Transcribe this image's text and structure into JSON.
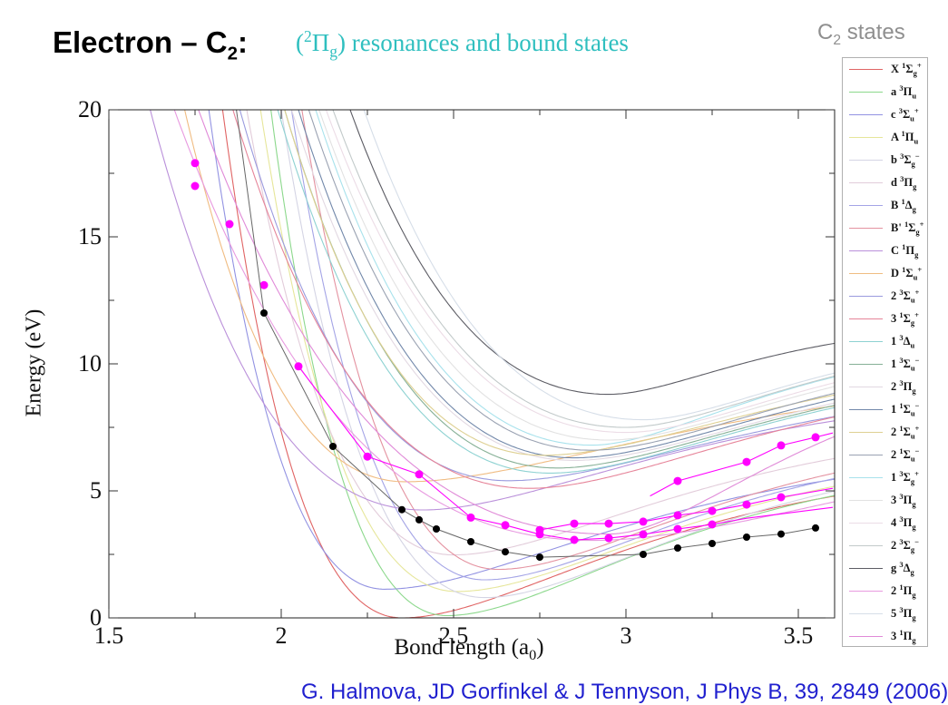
{
  "slide": {
    "title": {
      "prefix": "Electron – C",
      "sub": "2",
      "suffix": ":"
    },
    "subtitle": {
      "open": "(",
      "sup": "2",
      "symbol": "Π",
      "sub": "g",
      "rest": ") resonances and bound states",
      "color": "#2fbfbf"
    },
    "legend_title": {
      "prefix": "C",
      "sub": "2",
      "suffix": " states"
    },
    "citation": "G. Halmova,  JD Gorfinkel &  J Tennyson, J Phys B, 39, 2849 (2006)",
    "colors": {
      "citation": "#2020cf",
      "frame": "#222222",
      "tick": "#333333",
      "legend_border": "#b0b0b0",
      "header_gray": "#8f8f8f"
    }
  },
  "axes": {
    "x": {
      "label_prefix": "Bond length (a",
      "label_sub": "0",
      "label_suffix": ")",
      "min": 1.5,
      "max": 3.605,
      "major": [
        1.5,
        2,
        2.5,
        3,
        3.5
      ],
      "minor": [
        1.75,
        2.25,
        2.75,
        3.25
      ],
      "tick_labels": [
        "1.5",
        "2",
        "2.5",
        "3",
        "3.5"
      ]
    },
    "y": {
      "label": "Energy (eV)",
      "min": 0,
      "max": 20,
      "major": [
        0,
        5,
        10,
        15,
        20
      ],
      "minor": [
        2.5,
        7.5,
        12.5,
        17.5
      ],
      "tick_labels": [
        "0",
        "5",
        "10",
        "15",
        "20"
      ]
    }
  },
  "chart_data": {
    "type": "line",
    "title": "Electron – C2: (2Πg) resonances and bound states",
    "xlabel": "Bond length (a0)",
    "ylabel": "Energy (eV)",
    "xlim": [
      1.5,
      3.605
    ],
    "ylim": [
      0,
      20
    ],
    "grid": false,
    "legend_position": "right-outside",
    "curve_model": "morse: E(R)=te+dl*(1-exp(-al*(R-re)))^2 left of re (al set so E(r20)=20), E(R)=te+(asym-te)*(1-exp(-ar*(R-re)))^2 right of re",
    "curves": [
      {
        "prefix": "X",
        "mult": "1",
        "sym": "Σ",
        "sub": "g",
        "sup": "+",
        "color": "#e06464",
        "te": 0,
        "re": 2.35,
        "r20": 1.83,
        "asym": 6.4,
        "ar": 1.6
      },
      {
        "prefix": "a",
        "mult": "3",
        "sym": "Π",
        "sub": "u",
        "sup": "",
        "color": "#8cd88c",
        "te": 0.09,
        "re": 2.48,
        "r20": 1.97,
        "asym": 6.6,
        "ar": 1.7
      },
      {
        "prefix": "c",
        "mult": "3",
        "sym": "Σ",
        "sub": "u",
        "sup": "+",
        "color": "#9292e2",
        "te": 1.13,
        "re": 2.3,
        "r20": 1.79,
        "asym": 7.0,
        "ar": 1.5
      },
      {
        "prefix": "A",
        "mult": "1",
        "sym": "Π",
        "sub": "u",
        "sup": "",
        "color": "#e6e69a",
        "te": 1.04,
        "re": 2.51,
        "r20": 1.94,
        "asym": 7.1,
        "ar": 1.6
      },
      {
        "prefix": "b",
        "mult": "3",
        "sym": "Σ",
        "sub": "g",
        "sup": "−",
        "color": "#d4d4e4",
        "te": 0.8,
        "re": 2.59,
        "r20": 2.0,
        "asym": 7.0,
        "ar": 1.7
      },
      {
        "prefix": "d",
        "mult": "3",
        "sym": "Π",
        "sub": "g",
        "sup": "",
        "color": "#e2ccda",
        "te": 2.48,
        "re": 2.5,
        "r20": 1.9,
        "asym": 8.0,
        "ar": 1.6
      },
      {
        "prefix": "B",
        "mult": "1",
        "sym": "Δ",
        "sub": "g",
        "sup": "",
        "color": "#a4a4e6",
        "te": 1.5,
        "re": 2.59,
        "r20": 2.03,
        "asym": 7.4,
        "ar": 1.7
      },
      {
        "prefix": "B'",
        "mult": "1",
        "sym": "Σ",
        "sub": "g",
        "sup": "+",
        "color": "#e492a0",
        "te": 1.91,
        "re": 2.63,
        "r20": 2.06,
        "asym": 7.7,
        "ar": 1.7
      },
      {
        "prefix": "C",
        "mult": "1",
        "sym": "Π",
        "sub": "g",
        "sup": "",
        "color": "#ba90da",
        "te": 4.25,
        "re": 2.41,
        "r20": 1.62,
        "asym": 9.3,
        "ar": 1.5
      },
      {
        "prefix": "D",
        "mult": "1",
        "sym": "Σ",
        "sub": "u",
        "sup": "+",
        "color": "#f0bc82",
        "te": 5.36,
        "re": 2.36,
        "r20": 1.72,
        "asym": 10.0,
        "ar": 1.3
      },
      {
        "prefix": "2",
        "mult": "3",
        "sym": "Σ",
        "sub": "u",
        "sup": "+",
        "color": "#9a9ade",
        "te": 5.4,
        "re": 2.66,
        "r20": 1.88,
        "asym": 9.8,
        "ar": 1.5
      },
      {
        "prefix": "3",
        "mult": "1",
        "sym": "Σ",
        "sub": "g",
        "sup": "+",
        "color": "#e68499",
        "te": 5.1,
        "re": 2.72,
        "r20": 1.86,
        "asym": 10.3,
        "ar": 1.5
      },
      {
        "prefix": "1",
        "mult": "3",
        "sym": "Δ",
        "sub": "u",
        "sup": "",
        "color": "#8ed2d2",
        "te": 5.7,
        "re": 2.78,
        "r20": 1.99,
        "asym": 10.5,
        "ar": 1.6
      },
      {
        "prefix": "1",
        "mult": "3",
        "sym": "Σ",
        "sub": "u",
        "sup": "−",
        "color": "#86b096",
        "te": 5.9,
        "re": 2.8,
        "r20": 2.01,
        "asym": 10.6,
        "ar": 1.6
      },
      {
        "prefix": "2",
        "mult": "3",
        "sym": "Π",
        "sub": "g",
        "sup": "",
        "color": "#e2d8e2",
        "te": 6.2,
        "re": 2.85,
        "r20": 2.03,
        "asym": 10.8,
        "ar": 1.6
      },
      {
        "prefix": "1",
        "mult": "1",
        "sym": "Σ",
        "sub": "u",
        "sup": "−",
        "color": "#7288aa",
        "te": 6.3,
        "re": 2.85,
        "r20": 2.05,
        "asym": 11.0,
        "ar": 1.6
      },
      {
        "prefix": "2",
        "mult": "1",
        "sym": "Σ",
        "sub": "u",
        "sup": "+",
        "color": "#ded092",
        "te": 6.4,
        "re": 2.76,
        "r20": 2.01,
        "asym": 11.0,
        "ar": 1.5
      },
      {
        "prefix": "2",
        "mult": "1",
        "sym": "Σ",
        "sub": "u",
        "sup": "−",
        "color": "#9aa2b2",
        "te": 6.6,
        "re": 2.9,
        "r20": 2.08,
        "asym": 11.2,
        "ar": 1.7
      },
      {
        "prefix": "1",
        "mult": "3",
        "sym": "Σ",
        "sub": "g",
        "sup": "+",
        "color": "#a8e2ec",
        "te": 6.8,
        "re": 2.9,
        "r20": 2.1,
        "asym": 11.3,
        "ar": 2.1
      },
      {
        "prefix": "3",
        "mult": "3",
        "sym": "Π",
        "sub": "g",
        "sup": "",
        "color": "#e2e2e2",
        "te": 7.0,
        "re": 2.95,
        "r20": 2.11,
        "asym": 11.4,
        "ar": 1.8
      },
      {
        "prefix": "4",
        "mult": "3",
        "sym": "Π",
        "sub": "g",
        "sup": "",
        "color": "#ecdce6",
        "te": 7.3,
        "re": 3.0,
        "r20": 2.13,
        "asym": 11.5,
        "ar": 1.9
      },
      {
        "prefix": "2",
        "mult": "3",
        "sym": "Σ",
        "sub": "g",
        "sup": "−",
        "color": "#c2caca",
        "te": 7.5,
        "re": 3.0,
        "r20": 2.15,
        "asym": 11.6,
        "ar": 2.0
      },
      {
        "prefix": "g",
        "mult": "3",
        "sym": "Δ",
        "sub": "g",
        "sup": "",
        "color": "#5c5c64",
        "te": 8.8,
        "re": 2.95,
        "r20": 2.2,
        "asym": 11.8,
        "ar": 2.6
      },
      {
        "prefix": "2",
        "mult": "1",
        "sym": "Π",
        "sub": "g",
        "sup": "",
        "color": "#e89ae0",
        "te": 3.05,
        "re": 2.9,
        "r20": 1.69,
        "asym": 9.0,
        "ar": 1.0,
        "dl": 25
      },
      {
        "prefix": "5",
        "mult": "3",
        "sym": "Π",
        "sub": "g",
        "sup": "",
        "color": "#d6dee8",
        "te": 7.8,
        "re": 3.05,
        "r20": 2.24,
        "asym": 11.5,
        "ar": 2.2
      },
      {
        "prefix": "3",
        "mult": "1",
        "sym": "Π",
        "sub": "g",
        "sup": "",
        "color": "#e08ad8",
        "te": 3.3,
        "re": 2.95,
        "r20": 1.76,
        "asym": 10.5,
        "ar": 2.0,
        "dl": 25
      }
    ],
    "scatter": [
      {
        "name": "pi-g-resonance-positions",
        "color": "#ff00ff",
        "marker_r": 4.5,
        "connected": false,
        "points": [
          [
            1.75,
            17.9
          ],
          [
            1.75,
            17.0
          ],
          [
            1.85,
            15.5
          ],
          [
            1.95,
            13.1
          ],
          [
            2.05,
            9.9
          ],
          [
            2.25,
            6.35
          ],
          [
            2.4,
            5.65
          ],
          [
            2.55,
            3.95
          ],
          [
            2.65,
            3.65
          ],
          [
            2.75,
            3.46
          ],
          [
            2.75,
            3.29
          ],
          [
            2.85,
            3.71
          ],
          [
            2.85,
            3.07
          ],
          [
            2.95,
            3.71
          ],
          [
            2.95,
            3.14
          ],
          [
            3.05,
            3.79
          ],
          [
            3.05,
            3.29
          ],
          [
            3.15,
            5.39
          ],
          [
            3.15,
            4.04
          ],
          [
            3.15,
            3.5
          ],
          [
            3.25,
            4.21
          ],
          [
            3.25,
            3.68
          ],
          [
            3.35,
            6.14
          ],
          [
            3.35,
            4.46
          ],
          [
            3.45,
            6.79
          ],
          [
            3.45,
            4.75
          ],
          [
            3.55,
            7.11
          ]
        ]
      },
      {
        "name": "bound-anion-state",
        "color": "#000000",
        "line_color": "#666666",
        "marker_r": 4,
        "connected": true,
        "line_ext": [
          [
            1.865,
            20.5
          ]
        ],
        "points": [
          [
            1.95,
            12.0
          ],
          [
            2.15,
            6.75
          ],
          [
            2.35,
            4.26
          ],
          [
            2.4,
            3.86
          ],
          [
            2.45,
            3.5
          ],
          [
            2.55,
            3.0
          ],
          [
            2.65,
            2.6
          ],
          [
            2.75,
            2.39
          ],
          [
            3.05,
            2.5
          ],
          [
            3.15,
            2.75
          ],
          [
            3.25,
            2.93
          ],
          [
            3.35,
            3.18
          ],
          [
            3.45,
            3.3
          ],
          [
            3.55,
            3.54
          ]
        ]
      }
    ],
    "guide_lines": [
      {
        "name": "resonance-valley-line",
        "color": "#ff00ff",
        "points": [
          [
            2.05,
            9.9
          ],
          [
            2.25,
            6.35
          ],
          [
            2.4,
            5.65
          ],
          [
            2.55,
            3.95
          ],
          [
            2.65,
            3.65
          ],
          [
            2.75,
            3.29
          ],
          [
            2.85,
            3.07
          ],
          [
            2.95,
            3.14
          ],
          [
            3.05,
            3.29
          ],
          [
            3.15,
            3.5
          ],
          [
            3.25,
            3.68
          ],
          [
            3.35,
            3.92
          ],
          [
            3.6,
            4.35
          ]
        ]
      },
      {
        "name": "resonance-mid-line",
        "color": "#ff00ff",
        "points": [
          [
            2.75,
            3.46
          ],
          [
            2.85,
            3.71
          ],
          [
            2.95,
            3.71
          ],
          [
            3.05,
            3.79
          ],
          [
            3.15,
            4.04
          ],
          [
            3.25,
            4.21
          ],
          [
            3.35,
            4.46
          ],
          [
            3.45,
            4.75
          ],
          [
            3.6,
            5.1
          ]
        ]
      },
      {
        "name": "resonance-upper-line",
        "color": "#ff00ff",
        "points": [
          [
            3.07,
            4.8
          ],
          [
            3.15,
            5.39
          ],
          [
            3.35,
            6.14
          ],
          [
            3.45,
            6.79
          ],
          [
            3.55,
            7.11
          ],
          [
            3.6,
            7.28
          ]
        ]
      }
    ]
  }
}
